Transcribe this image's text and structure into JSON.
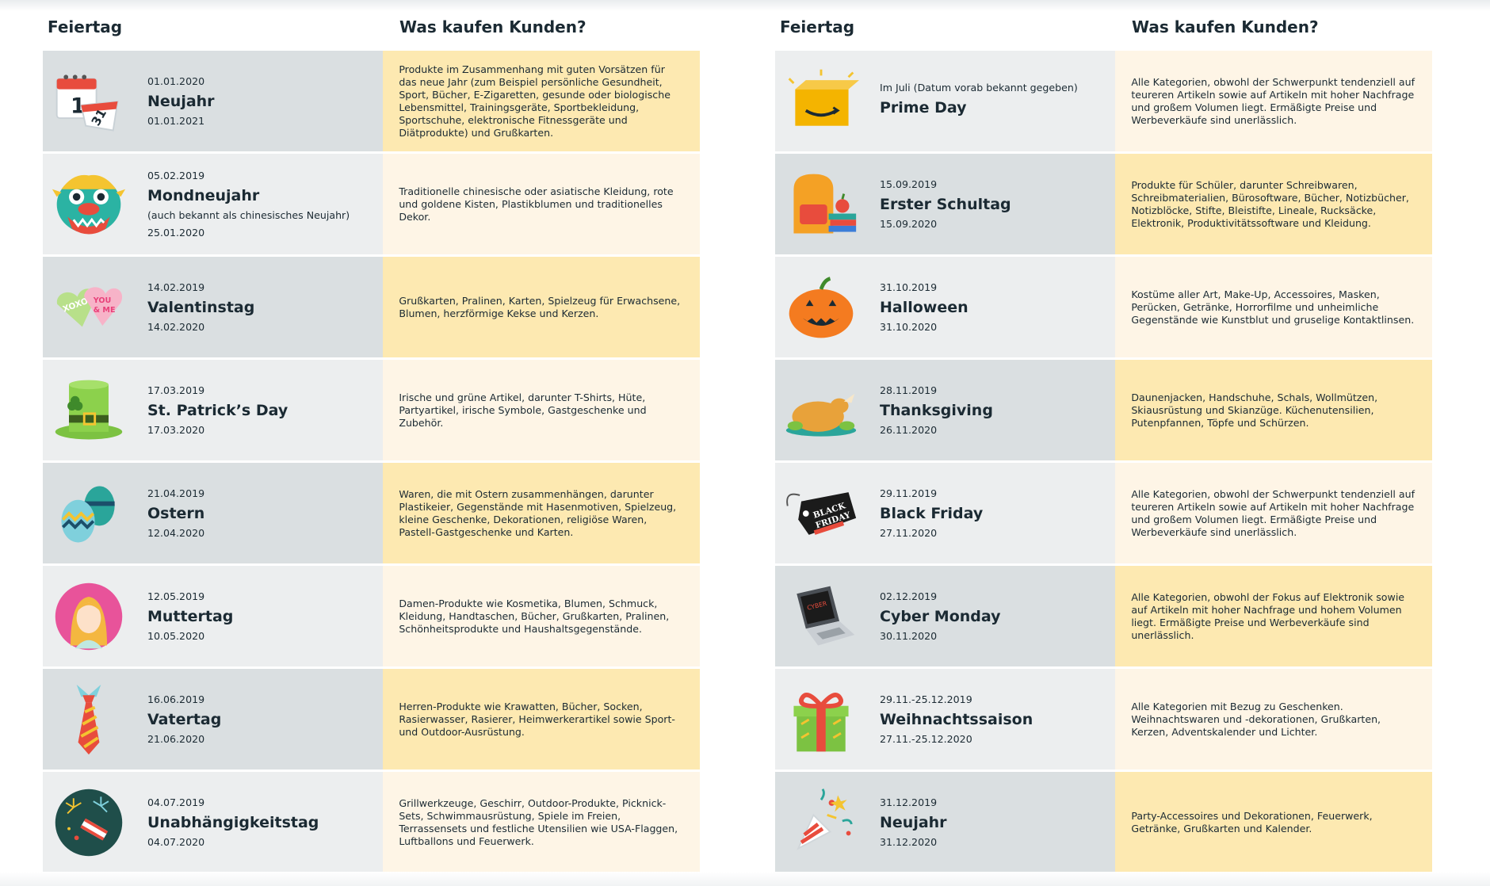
{
  "headers": {
    "holiday": "Feiertag",
    "purchases": "Was kaufen Kunden?"
  },
  "left": [
    {
      "icon": "calendar-icon",
      "date1": "01.01.2020",
      "name": "Neujahr",
      "note": "",
      "date2": "01.01.2021",
      "desc": "Produkte im Zusammenhang mit guten Vorsätzen für das neue Jahr (zum Beispiel persönliche Gesundheit, Sport, Bücher, E-Zigaretten, gesunde oder biologische Lebensmittel, Trainingsgeräte, Sportbekleidung, Sportschuhe, elektronische Fitnessgeräte und Diätprodukte) und Grußkarten."
    },
    {
      "icon": "dragon-mask-icon",
      "date1": "05.02.2019",
      "name": "Mondneujahr",
      "note": "(auch bekannt als chinesisches Neujahr)",
      "date2": "25.01.2020",
      "desc": "Traditionelle chinesische oder asiatische Kleidung, rote und goldene Kisten, Plastikblumen und traditionelles Dekor."
    },
    {
      "icon": "candy-hearts-icon",
      "date1": "14.02.2019",
      "name": "Valentinstag",
      "note": "",
      "date2": "14.02.2020",
      "desc": "Grußkarten, Pralinen, Karten, Spielzeug für Erwachsene, Blumen, herzförmige Kekse und Kerzen."
    },
    {
      "icon": "leprechaun-hat-icon",
      "date1": "17.03.2019",
      "name": "St. Patrick’s Day",
      "note": "",
      "date2": "17.03.2020",
      "desc": "Irische und grüne Artikel, darunter T-Shirts, Hüte, Partyartikel, irische Symbole, Gastgeschenke und Zubehör."
    },
    {
      "icon": "easter-eggs-icon",
      "date1": "21.04.2019",
      "name": "Ostern",
      "note": "",
      "date2": "12.04.2020",
      "desc": "Waren, die mit Ostern zusammenhängen, darunter Plastikeier, Gegenstände mit Hasenmotiven, Spielzeug, kleine Geschenke, Dekorationen, religiöse Waren, Pastell-Gastgeschenke und Karten."
    },
    {
      "icon": "mother-portrait-icon",
      "date1": "12.05.2019",
      "name": "Muttertag",
      "note": "",
      "date2": "10.05.2020",
      "desc": "Damen-Produkte wie Kosmetika, Blumen, Schmuck, Kleidung, Handtaschen, Bücher, Grußkarten, Pralinen, Schönheitsprodukte und Haushaltsgegenstände."
    },
    {
      "icon": "necktie-icon",
      "date1": "16.06.2019",
      "name": "Vatertag",
      "note": "",
      "date2": "21.06.2020",
      "desc": "Herren-Produkte wie Krawatten, Bücher, Socken, Rasierwasser, Rasierer, Heimwerkerartikel sowie Sport- und Outdoor-Ausrüstung."
    },
    {
      "icon": "fireworks-icon",
      "date1": "04.07.2019",
      "name": "Unabhängigkeitstag",
      "note": "",
      "date2": "04.07.2020",
      "desc": "Grillwerkzeuge, Geschirr, Outdoor-Produkte, Picknick-Sets, Schwimmausrüstung, Spiele im Freien, Terrassensets und festliche Utensilien wie USA-Flaggen, Luftballons und Feuerwerk."
    }
  ],
  "right": [
    {
      "icon": "amazon-box-icon",
      "date1": "Im Juli (Datum vorab bekannt gegeben)",
      "name": "Prime Day",
      "note": "",
      "date2": "",
      "desc": "Alle Kategorien, obwohl der Schwerpunkt tendenziell auf teureren Artikeln sowie auf Artikeln mit hoher Nachfrage und großem Volumen liegt. Ermäßigte Preise und Werbeverkäufe sind unerlässlich."
    },
    {
      "icon": "school-backpack-icon",
      "date1": "15.09.2019",
      "name": "Erster Schultag",
      "note": "",
      "date2": "15.09.2020",
      "desc": "Produkte für Schüler, darunter Schreibwaren, Schreibmaterialien, Bürosoftware, Bücher, Notizbücher, Notizblöcke, Stifte, Bleistifte, Lineale, Rucksäcke, Elektronik, Produktivitätssoftware und Kleidung."
    },
    {
      "icon": "pumpkin-icon",
      "date1": "31.10.2019",
      "name": "Halloween",
      "note": "",
      "date2": "31.10.2020",
      "desc": "Kostüme aller Art, Make-Up, Accessoires, Masken, Perücken, Getränke, Horrorfilme und unheimliche Gegenstände wie Kunstblut und gruselige Kontaktlinsen."
    },
    {
      "icon": "roast-turkey-icon",
      "date1": "28.11.2019",
      "name": "Thanksgiving",
      "note": "",
      "date2": "26.11.2020",
      "desc": "Daunenjacken, Handschuhe, Schals, Wollmützen, Skiausrüstung und Skianzüge. Küchenutensilien, Putenpfannen, Töpfe und Schürzen."
    },
    {
      "icon": "price-tag-icon",
      "date1": "29.11.2019",
      "name": "Black Friday",
      "note": "",
      "date2": "27.11.2020",
      "desc": "Alle Kategorien, obwohl der Schwerpunkt tendenziell auf teureren Artikeln sowie auf Artikeln mit hoher Nachfrage und großem Volumen liegt. Ermäßigte Preise und Werbeverkäufe sind unerlässlich."
    },
    {
      "icon": "laptop-icon",
      "date1": "02.12.2019",
      "name": "Cyber Monday",
      "note": "",
      "date2": "30.11.2020",
      "desc": "Alle Kategorien, obwohl der Fokus auf Elektronik sowie auf Artikeln mit hoher Nachfrage und hohem Volumen liegt. Ermäßigte Preise und Werbeverkäufe sind unerlässlich."
    },
    {
      "icon": "gift-box-icon",
      "date1": "29.11.-25.12.2019",
      "name": "Weihnachtssaison",
      "note": "",
      "date2": "27.11.-25.12.2020",
      "desc": "Alle Kategorien mit Bezug zu Geschenken. Weihnachtswaren und -dekorationen, Grußkarten, Kerzen, Adventskalender und Lichter."
    },
    {
      "icon": "party-popper-icon",
      "date1": "31.12.2019",
      "name": "Neujahr",
      "note": "",
      "date2": "31.12.2020",
      "desc": "Party-Accessoires und Dekorationen, Feuerwerk, Getränke, Grußkarten und Kalender."
    }
  ]
}
